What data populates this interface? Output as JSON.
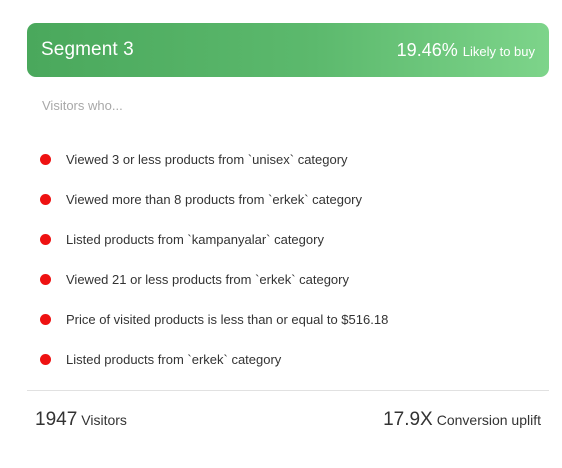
{
  "header": {
    "title": "Segment 3",
    "likelihood_value": "19.46%",
    "likelihood_label": "Likely to buy",
    "gradient_start": "#4aa85c",
    "gradient_end": "#7dd48a"
  },
  "rules_heading": "Visitors who...",
  "bullet_color": "#ee1111",
  "rules": [
    "Viewed 3 or less products from `unisex` category",
    "Viewed more than 8 products from `erkek` category",
    "Listed products from `kampanyalar` category",
    "Viewed 21 or less products from `erkek` category",
    "Price of visited products is less than or equal to $516.18",
    "Listed products from `erkek` category"
  ],
  "footer": {
    "visitors_value": "1947",
    "visitors_label": "Visitors",
    "uplift_value": "17.9X",
    "uplift_label": "Conversion uplift"
  }
}
